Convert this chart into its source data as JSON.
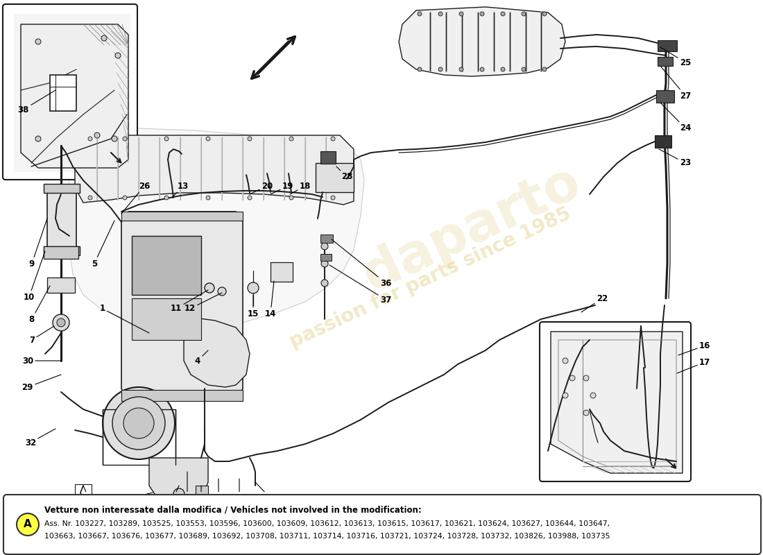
{
  "background_color": "#ffffff",
  "note_title": "Vetture non interessate dalla modifica / Vehicles not involved in the modification:",
  "note_line1": "Ass. Nr. 103227, 103289, 103525, 103553, 103596, 103600, 103609, 103612, 103613, 103615, 103617, 103621, 103624, 103627, 103644, 103647,",
  "note_line2": "103663, 103667, 103676, 103677, 103689, 103692, 103708, 103711, 103714, 103716, 103721, 103724, 103728, 103732, 103826, 103988, 103735",
  "note_label": "A",
  "watermark1": "passion for parts since 1985",
  "watermark2": "daparto",
  "draw_color": "#1a1a1a",
  "light_gray": "#d8d8d8",
  "mid_gray": "#b0b0b0",
  "dark_gray": "#888888"
}
